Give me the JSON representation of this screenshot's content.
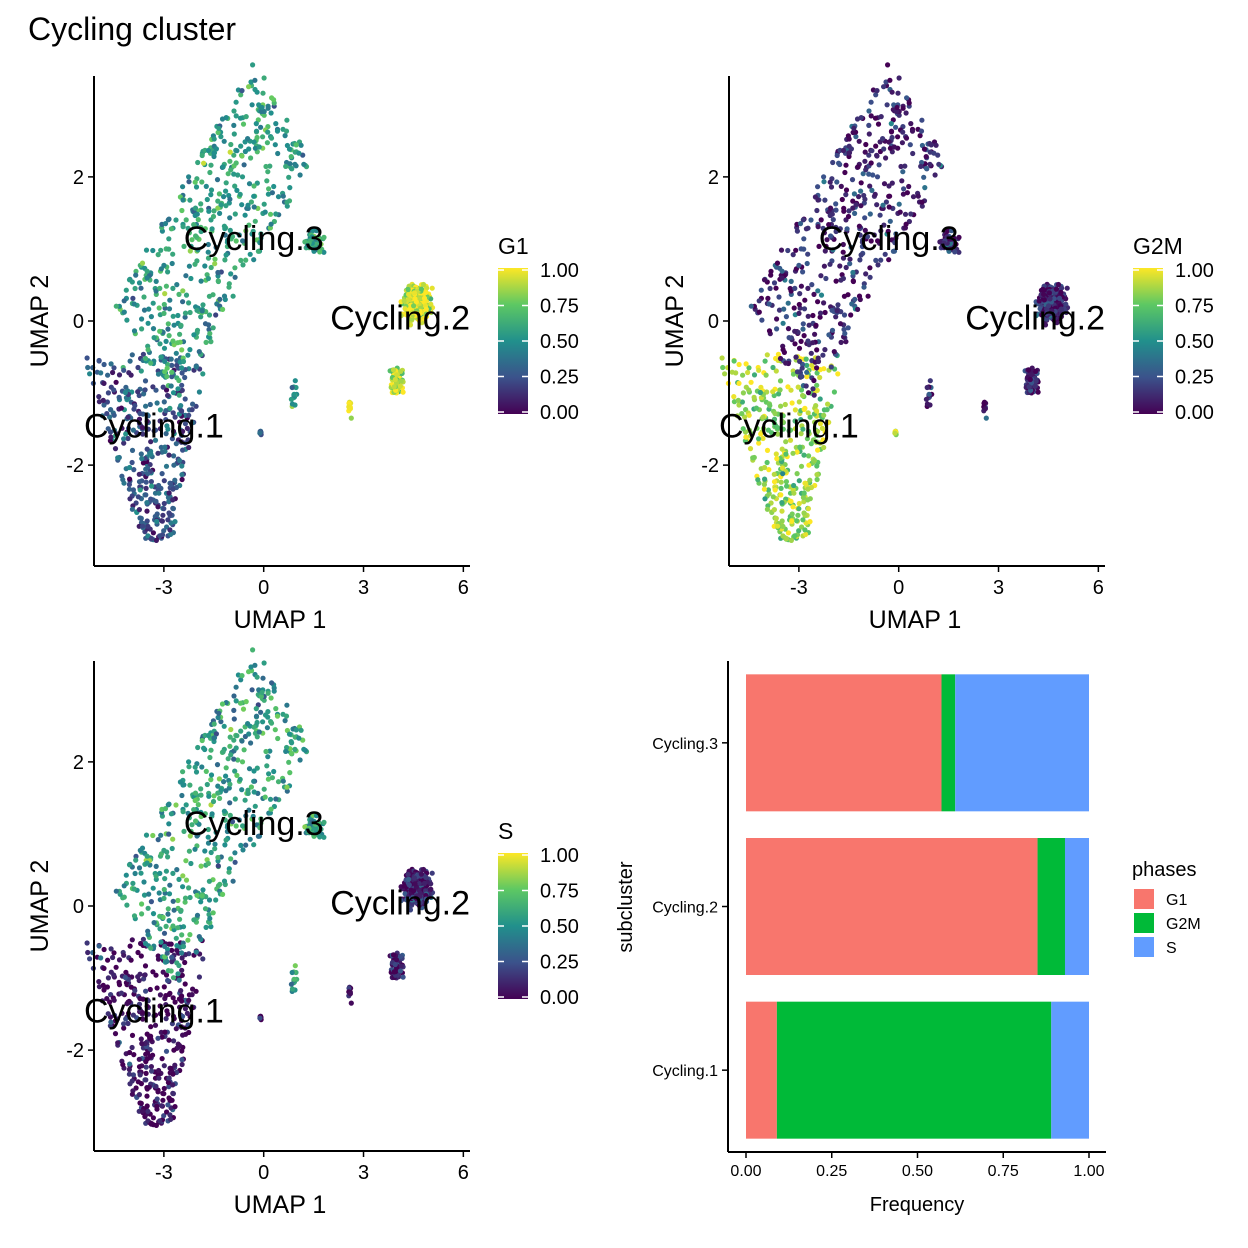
{
  "title": "Cycling cluster",
  "colors": {
    "viridis": [
      "#440154",
      "#3b528b",
      "#21908c",
      "#5dc863",
      "#fde725"
    ],
    "G1": "#F8766D",
    "G2M": "#00BA38",
    "S": "#619CFF",
    "axis": "#000000"
  },
  "chart_data": [
    {
      "type": "scatter",
      "panel": "G1",
      "xlabel": "UMAP 1",
      "ylabel": "UMAP 2",
      "xticks": [
        "-3",
        "0",
        "3",
        "6"
      ],
      "yticks": [
        "-2",
        "0",
        "2"
      ],
      "xlim": [
        -5.1,
        6.2
      ],
      "ylim": [
        -3.4,
        3.4
      ],
      "legend": {
        "title": "G1",
        "labels": [
          "1.00",
          "0.75",
          "0.50",
          "0.25",
          "0.00"
        ],
        "placement": "right"
      },
      "cluster_labels": [
        {
          "text": "Cycling.3",
          "x": -0.3,
          "y": 1.15
        },
        {
          "text": "Cycling.2",
          "x": 4.1,
          "y": 0.05
        },
        {
          "text": "Cycling.1",
          "x": -3.3,
          "y": -1.45
        }
      ],
      "score_levels": {
        "Cycling.1": 0.28,
        "Cycling.2": 0.92,
        "Cycling.3": 0.55
      }
    },
    {
      "type": "scatter",
      "panel": "G2M",
      "xlabel": "UMAP 1",
      "ylabel": "UMAP 2",
      "xticks": [
        "-3",
        "0",
        "3",
        "6"
      ],
      "yticks": [
        "-2",
        "0",
        "2"
      ],
      "xlim": [
        -5.1,
        6.2
      ],
      "ylim": [
        -3.4,
        3.4
      ],
      "legend": {
        "title": "G2M",
        "labels": [
          "1.00",
          "0.75",
          "0.50",
          "0.25",
          "0.00"
        ],
        "placement": "right"
      },
      "cluster_labels": [
        {
          "text": "Cycling.3",
          "x": -0.3,
          "y": 1.15
        },
        {
          "text": "Cycling.2",
          "x": 4.1,
          "y": 0.05
        },
        {
          "text": "Cycling.1",
          "x": -3.3,
          "y": -1.45
        }
      ],
      "score_levels": {
        "Cycling.1": 0.85,
        "Cycling.2": 0.12,
        "Cycling.3": 0.12
      }
    },
    {
      "type": "scatter",
      "panel": "S",
      "xlabel": "UMAP 1",
      "ylabel": "UMAP 2",
      "xticks": [
        "-3",
        "0",
        "3",
        "6"
      ],
      "yticks": [
        "-2",
        "0",
        "2"
      ],
      "xlim": [
        -5.1,
        6.2
      ],
      "ylim": [
        -3.4,
        3.4
      ],
      "legend": {
        "title": "S",
        "labels": [
          "1.00",
          "0.75",
          "0.50",
          "0.25",
          "0.00"
        ],
        "placement": "right"
      },
      "cluster_labels": [
        {
          "text": "Cycling.3",
          "x": -0.3,
          "y": 1.15
        },
        {
          "text": "Cycling.2",
          "x": 4.1,
          "y": 0.05
        },
        {
          "text": "Cycling.1",
          "x": -3.3,
          "y": -1.45
        }
      ],
      "score_levels": {
        "Cycling.1": 0.05,
        "Cycling.2": 0.12,
        "Cycling.3": 0.55
      }
    },
    {
      "type": "bar",
      "orientation": "horizontal",
      "stacked": true,
      "xlabel": "Frequency",
      "ylabel": "subcluster",
      "xticks": [
        "0.00",
        "0.25",
        "0.50",
        "0.75",
        "1.00"
      ],
      "xlim": [
        0,
        1
      ],
      "categories": [
        "Cycling.3",
        "Cycling.2",
        "Cycling.1"
      ],
      "series": [
        {
          "name": "G1",
          "values": [
            0.57,
            0.85,
            0.09
          ]
        },
        {
          "name": "G2M",
          "values": [
            0.04,
            0.08,
            0.8
          ]
        },
        {
          "name": "S",
          "values": [
            0.39,
            0.07,
            0.11
          ]
        }
      ],
      "legend": {
        "title": "phases",
        "labels": [
          "G1",
          "G2M",
          "S"
        ],
        "placement": "right"
      }
    }
  ]
}
